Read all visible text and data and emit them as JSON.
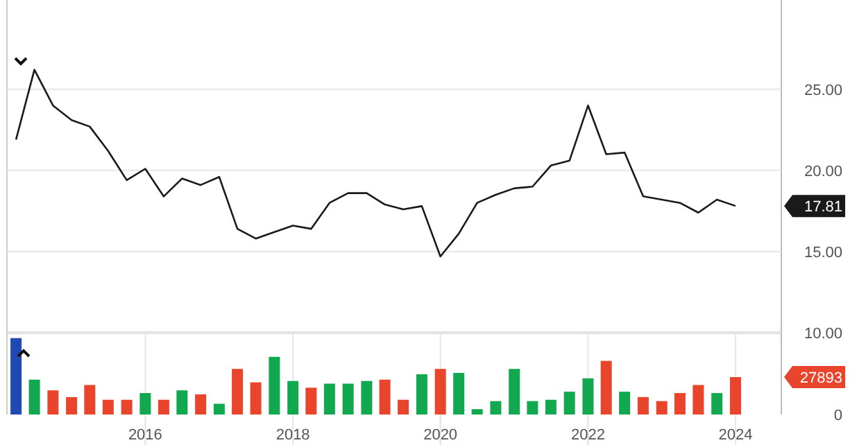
{
  "chart_data": [
    {
      "type": "line",
      "x": [
        "2014-04",
        "2014-07",
        "2014-10",
        "2015-01",
        "2015-04",
        "2015-07",
        "2015-10",
        "2016-01",
        "2016-04",
        "2016-07",
        "2016-10",
        "2017-01",
        "2017-04",
        "2017-07",
        "2017-10",
        "2018-01",
        "2018-04",
        "2018-07",
        "2018-10",
        "2019-01",
        "2019-04",
        "2019-07",
        "2019-10",
        "2020-01",
        "2020-04",
        "2020-07",
        "2020-10",
        "2021-01",
        "2021-04",
        "2021-07",
        "2021-10",
        "2022-01",
        "2022-04",
        "2022-07",
        "2022-10",
        "2023-01",
        "2023-04",
        "2023-07",
        "2023-10",
        "2024-01"
      ],
      "series": [
        {
          "color": "#1a1a1a",
          "values": [
            21.9,
            26.2,
            24.0,
            23.1,
            22.7,
            21.2,
            19.4,
            20.1,
            18.4,
            19.5,
            19.1,
            19.6,
            16.4,
            15.8,
            16.2,
            16.6,
            16.4,
            18.0,
            18.6,
            18.6,
            17.9,
            17.6,
            17.8,
            14.7,
            16.1,
            18.0,
            18.5,
            18.9,
            19.0,
            20.3,
            20.6,
            24.0,
            21.0,
            21.1,
            18.4,
            18.2,
            18.0,
            17.4,
            18.2,
            17.81
          ]
        }
      ],
      "xlim": [
        "2014-02-15",
        "2024-08-15"
      ],
      "xticks": [
        "2016",
        "2018",
        "2020",
        "2022",
        "2024"
      ],
      "ylim": [
        10,
        30.5
      ],
      "yticks": [
        {
          "value": 10,
          "label": "10.00"
        },
        {
          "value": 15,
          "label": "15.00"
        },
        {
          "value": 17.81,
          "label": "17.81"
        },
        {
          "value": 20,
          "label": "20.00"
        },
        {
          "value": 25,
          "label": "25.00"
        }
      ],
      "grid": true,
      "tick_labels": "y"
    },
    {
      "type": "bar",
      "x": [
        "2014-04",
        "2014-07",
        "2014-10",
        "2015-01",
        "2015-04",
        "2015-07",
        "2015-10",
        "2016-01",
        "2016-04",
        "2016-07",
        "2016-10",
        "2017-01",
        "2017-04",
        "2017-07",
        "2017-10",
        "2018-01",
        "2018-04",
        "2018-07",
        "2018-10",
        "2019-01",
        "2019-04",
        "2019-07",
        "2019-10",
        "2020-01",
        "2020-04",
        "2020-07",
        "2020-10",
        "2021-01",
        "2021-04",
        "2021-07",
        "2021-10",
        "2022-01",
        "2022-04",
        "2022-07",
        "2022-10",
        "2023-01",
        "2023-04",
        "2023-07",
        "2023-10",
        "2024-01"
      ],
      "values": [
        57000,
        26000,
        18000,
        13000,
        22000,
        11000,
        11000,
        16000,
        11000,
        18000,
        15000,
        8000,
        34000,
        24000,
        43000,
        25000,
        20000,
        23000,
        23000,
        25000,
        26000,
        11000,
        30000,
        34000,
        31000,
        4000,
        10000,
        34000,
        10000,
        11000,
        17000,
        27000,
        40000,
        17000,
        13000,
        10000,
        16000,
        22000,
        16000,
        27893
      ],
      "colors": [
        "#2149b4",
        "#12a84f",
        "#e8452c",
        "#e8452c",
        "#e8452c",
        "#e8452c",
        "#e8452c",
        "#12a84f",
        "#e8452c",
        "#12a84f",
        "#e8452c",
        "#12a84f",
        "#e8452c",
        "#e8452c",
        "#12a84f",
        "#12a84f",
        "#e8452c",
        "#12a84f",
        "#12a84f",
        "#12a84f",
        "#e8452c",
        "#e8452c",
        "#12a84f",
        "#e8452c",
        "#12a84f",
        "#12a84f",
        "#12a84f",
        "#12a84f",
        "#12a84f",
        "#12a84f",
        "#12a84f",
        "#12a84f",
        "#e8452c",
        "#12a84f",
        "#e8452c",
        "#e8452c",
        "#e8452c",
        "#e8452c",
        "#12a84f",
        "#e8452c"
      ],
      "xlim": [
        "2014-02-15",
        "2024-08-15"
      ],
      "xticks": [
        "2016",
        "2018",
        "2020",
        "2022",
        "2024"
      ],
      "ylim": [
        0,
        61000
      ],
      "yticks": [
        0,
        {
          "value": 27893,
          "label": "27893"
        }
      ],
      "grid": "x"
    }
  ]
}
